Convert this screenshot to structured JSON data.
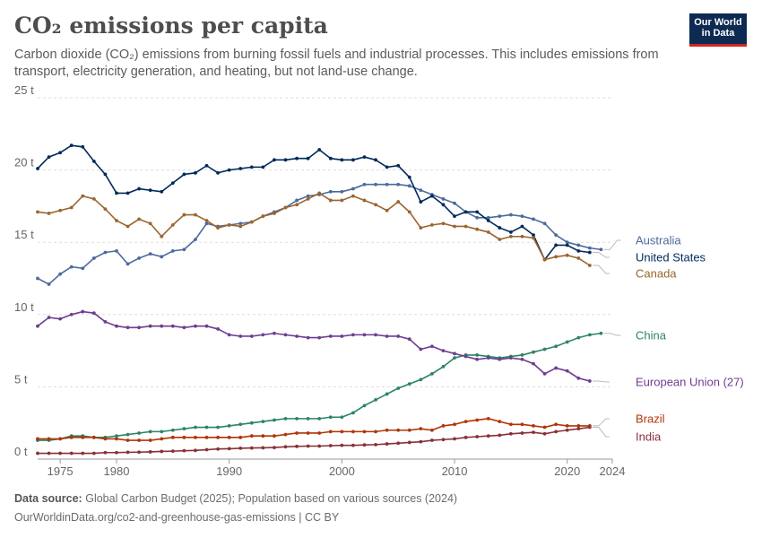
{
  "header": {
    "title": "CO₂ emissions per capita",
    "subtitle": "Carbon dioxide (CO₂) emissions from burning fossil fuels and industrial processes. This includes emissions from transport, electricity generation, and heating, but not land-use change.",
    "logo_line1": "Our World",
    "logo_line2": "in Data"
  },
  "footer": {
    "source_label": "Data source:",
    "source_text": "Global Carbon Budget (2025); Population based on various sources (2024)",
    "url_text": "OurWorldinData.org/co2-and-greenhouse-gas-emissions | CC BY"
  },
  "chart_data": {
    "type": "line",
    "xlim": [
      1973,
      2024
    ],
    "ylim": [
      0,
      25
    ],
    "x_ticks": [
      1975,
      1980,
      1990,
      2000,
      2010,
      2020,
      2024
    ],
    "x_tick_labels": [
      "1975",
      "1980",
      "1990",
      "2000",
      "2010",
      "2020",
      "2024"
    ],
    "y_ticks": [
      0,
      5,
      10,
      15,
      20,
      25
    ],
    "y_tick_labels": [
      "0 t",
      "5 t",
      "10 t",
      "15 t",
      "20 t",
      "25 t"
    ],
    "grid": "horizontal dashed",
    "legend": "right, labels at line ends",
    "series": [
      {
        "name": "Australia",
        "color": "#4c6a9c",
        "start_year": 1973,
        "values": [
          12.5,
          12.1,
          12.8,
          13.3,
          13.2,
          13.9,
          14.3,
          14.4,
          13.5,
          13.9,
          14.2,
          14.0,
          14.4,
          14.5,
          15.2,
          16.3,
          16.1,
          16.2,
          16.3,
          16.4,
          16.8,
          17.1,
          17.4,
          17.9,
          18.2,
          18.3,
          18.5,
          18.5,
          18.7,
          19.0,
          19.0,
          19.0,
          19.0,
          18.9,
          18.6,
          18.3,
          18.0,
          17.7,
          17.1,
          16.7,
          16.7,
          16.8,
          16.9,
          16.8,
          16.6,
          16.3,
          15.5,
          15.0,
          14.8,
          14.6,
          14.5
        ]
      },
      {
        "name": "United States",
        "color": "#00295b",
        "start_year": 1973,
        "values": [
          20.1,
          20.9,
          21.2,
          21.7,
          21.6,
          20.6,
          19.7,
          18.4,
          18.4,
          18.7,
          18.6,
          18.5,
          19.1,
          19.7,
          19.8,
          20.3,
          19.8,
          20.0,
          20.1,
          20.2,
          20.2,
          20.7,
          20.7,
          20.8,
          20.8,
          21.4,
          20.8,
          20.7,
          20.7,
          20.9,
          20.7,
          20.2,
          20.3,
          19.5,
          17.8,
          18.2,
          17.6,
          16.8,
          17.1,
          17.1,
          16.5,
          16.0,
          15.7,
          16.1,
          15.5,
          13.8,
          14.8,
          14.8,
          14.4,
          14.3
        ]
      },
      {
        "name": "Canada",
        "color": "#9a652e",
        "start_year": 1973,
        "values": [
          17.1,
          17.0,
          17.2,
          17.4,
          18.2,
          18.0,
          17.3,
          16.5,
          16.1,
          16.6,
          16.3,
          15.4,
          16.2,
          16.9,
          16.9,
          16.5,
          16.0,
          16.2,
          16.1,
          16.4,
          16.8,
          17.0,
          17.4,
          17.6,
          18.0,
          18.4,
          17.9,
          17.9,
          18.2,
          17.9,
          17.6,
          17.2,
          17.8,
          17.1,
          16.0,
          16.2,
          16.3,
          16.1,
          16.1,
          15.9,
          15.7,
          15.2,
          15.4,
          15.4,
          15.3,
          13.8,
          14.0,
          14.1,
          13.9,
          13.4
        ]
      },
      {
        "name": "China",
        "color": "#2c8465",
        "start_year": 1973,
        "values": [
          1.3,
          1.3,
          1.4,
          1.6,
          1.6,
          1.5,
          1.5,
          1.6,
          1.7,
          1.8,
          1.9,
          1.9,
          2.0,
          2.1,
          2.2,
          2.2,
          2.2,
          2.3,
          2.4,
          2.5,
          2.6,
          2.7,
          2.8,
          2.8,
          2.8,
          2.8,
          2.9,
          2.9,
          3.2,
          3.7,
          4.1,
          4.5,
          4.9,
          5.2,
          5.5,
          5.9,
          6.4,
          7.0,
          7.2,
          7.2,
          7.1,
          7.0,
          7.1,
          7.2,
          7.4,
          7.6,
          7.8,
          8.1,
          8.4,
          8.6,
          8.7
        ]
      },
      {
        "name": "European Union (27)",
        "color": "#6d3e91",
        "start_year": 1973,
        "values": [
          9.2,
          9.8,
          9.7,
          10.0,
          10.2,
          10.1,
          9.5,
          9.2,
          9.1,
          9.1,
          9.2,
          9.2,
          9.2,
          9.1,
          9.2,
          9.2,
          9.0,
          8.6,
          8.5,
          8.5,
          8.6,
          8.7,
          8.6,
          8.5,
          8.4,
          8.4,
          8.5,
          8.5,
          8.6,
          8.6,
          8.6,
          8.5,
          8.5,
          8.3,
          7.6,
          7.8,
          7.5,
          7.3,
          7.1,
          6.9,
          7.0,
          6.9,
          7.0,
          6.9,
          6.6,
          5.9,
          6.3,
          6.1,
          5.6,
          5.4
        ]
      },
      {
        "name": "Brazil",
        "color": "#b13507",
        "start_year": 1973,
        "values": [
          1.4,
          1.4,
          1.4,
          1.5,
          1.5,
          1.5,
          1.4,
          1.4,
          1.3,
          1.3,
          1.3,
          1.4,
          1.5,
          1.5,
          1.5,
          1.5,
          1.5,
          1.5,
          1.5,
          1.6,
          1.6,
          1.6,
          1.7,
          1.8,
          1.8,
          1.8,
          1.9,
          1.9,
          1.9,
          1.9,
          1.9,
          2.0,
          2.0,
          2.0,
          2.1,
          2.0,
          2.3,
          2.4,
          2.6,
          2.7,
          2.8,
          2.6,
          2.4,
          2.4,
          2.3,
          2.2,
          2.4,
          2.3,
          2.3,
          2.3
        ]
      },
      {
        "name": "India",
        "color": "#883039",
        "start_year": 1973,
        "values": [
          0.4,
          0.4,
          0.4,
          0.4,
          0.4,
          0.4,
          0.45,
          0.45,
          0.47,
          0.48,
          0.5,
          0.53,
          0.55,
          0.58,
          0.6,
          0.65,
          0.7,
          0.72,
          0.75,
          0.77,
          0.78,
          0.8,
          0.85,
          0.88,
          0.9,
          0.9,
          0.93,
          0.95,
          0.95,
          0.98,
          1.0,
          1.05,
          1.1,
          1.15,
          1.2,
          1.3,
          1.35,
          1.4,
          1.5,
          1.55,
          1.6,
          1.65,
          1.75,
          1.8,
          1.85,
          1.75,
          1.9,
          2.0,
          2.1,
          2.2
        ]
      }
    ]
  }
}
